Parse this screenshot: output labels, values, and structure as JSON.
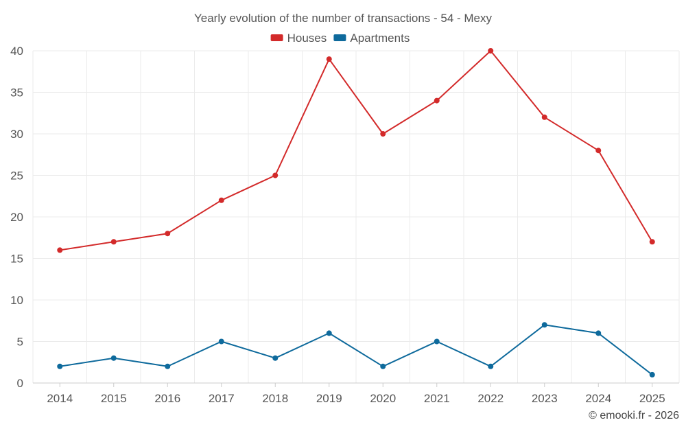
{
  "chart_data": {
    "type": "line",
    "title": "Yearly evolution of the number of transactions - 54 - Mexy",
    "categories": [
      "2014",
      "2015",
      "2016",
      "2017",
      "2018",
      "2019",
      "2020",
      "2021",
      "2022",
      "2023",
      "2024",
      "2025"
    ],
    "series": [
      {
        "name": "Houses",
        "color": "#d32a2a",
        "values": [
          16,
          17,
          18,
          22,
          25,
          39,
          30,
          34,
          40,
          32,
          28,
          17
        ]
      },
      {
        "name": "Apartments",
        "color": "#0e6a9c",
        "values": [
          2,
          3,
          2,
          5,
          3,
          6,
          2,
          5,
          2,
          7,
          6,
          1
        ]
      }
    ],
    "ylim": [
      0,
      40
    ],
    "yticks": [
      0,
      5,
      10,
      15,
      20,
      25,
      30,
      35,
      40
    ],
    "grid": true,
    "legend": "top-center",
    "xlabel": "",
    "ylabel": ""
  },
  "credit": "© emooki.fr - 2026"
}
